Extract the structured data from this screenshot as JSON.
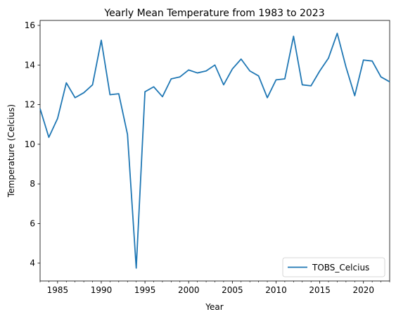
{
  "chart_data": {
    "type": "line",
    "title": "Yearly Mean Temperature from 1983 to 2023",
    "xlabel": "Year",
    "ylabel": "Temperature (Celcius)",
    "xlim": [
      1983,
      2023
    ],
    "ylim": [
      3.1,
      16.25
    ],
    "x_major_ticks": [
      1985,
      1990,
      1995,
      2000,
      2005,
      2010,
      2015,
      2020
    ],
    "y_ticks": [
      4,
      6,
      8,
      10,
      12,
      14,
      16
    ],
    "grid": false,
    "legend_position": "lower right",
    "series": [
      {
        "name": "TOBS_Celcius",
        "color": "#1f77b4",
        "x": [
          1983,
          1984,
          1985,
          1986,
          1987,
          1988,
          1989,
          1990,
          1991,
          1992,
          1993,
          1994,
          1995,
          1996,
          1997,
          1998,
          1999,
          2000,
          2001,
          2002,
          2003,
          2004,
          2005,
          2006,
          2007,
          2008,
          2009,
          2010,
          2011,
          2012,
          2013,
          2014,
          2015,
          2016,
          2017,
          2018,
          2019,
          2020,
          2021,
          2022,
          2023
        ],
        "values": [
          11.8,
          10.35,
          11.3,
          13.1,
          12.35,
          12.6,
          13.0,
          15.25,
          12.5,
          12.55,
          10.5,
          3.75,
          12.65,
          12.9,
          12.4,
          13.3,
          13.4,
          13.75,
          13.6,
          13.7,
          14.0,
          13.0,
          13.8,
          14.3,
          13.7,
          13.45,
          12.35,
          13.25,
          13.3,
          15.45,
          13.0,
          12.95,
          13.7,
          14.35,
          15.6,
          13.9,
          12.45,
          14.25,
          14.2,
          13.4,
          13.15
        ]
      }
    ]
  }
}
